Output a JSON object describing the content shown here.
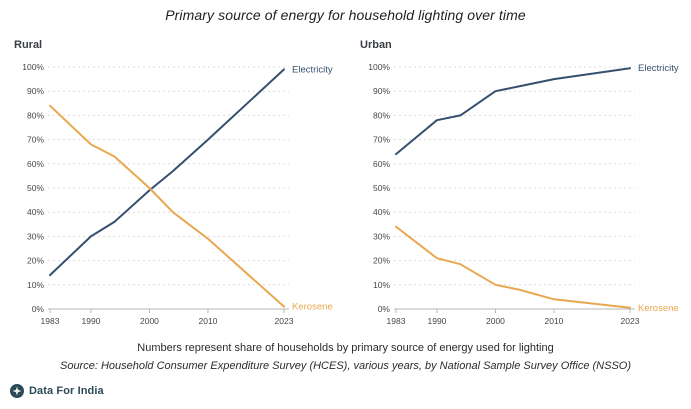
{
  "title": "Primary source of energy for household lighting over time",
  "colors": {
    "electricity": "#35506e",
    "kerosene": "#e9a84f",
    "grid": "#dcdcdc",
    "axis": "#b7b7b7",
    "tick_text": "#474747"
  },
  "chart_data": [
    {
      "type": "line",
      "title": "Rural",
      "x": [
        1983,
        1990,
        1994,
        2000,
        2004,
        2010,
        2023
      ],
      "xlim": [
        1983,
        2023
      ],
      "x_ticks": [
        1983,
        1990,
        2000,
        2010,
        2023
      ],
      "ylim": [
        0,
        100
      ],
      "y_ticks": [
        0,
        10,
        20,
        30,
        40,
        50,
        60,
        70,
        80,
        90,
        100
      ],
      "y_suffix": "%",
      "grid": true,
      "legend_position": "line-end-labels",
      "series": [
        {
          "name": "Electricity",
          "color": "#35506e",
          "values": [
            14,
            30,
            36,
            49,
            57,
            70,
            99
          ]
        },
        {
          "name": "Kerosene",
          "color": "#e9a84f",
          "values": [
            84,
            68,
            63,
            50,
            40,
            29,
            1
          ]
        }
      ]
    },
    {
      "type": "line",
      "title": "Urban",
      "x": [
        1983,
        1990,
        1994,
        2000,
        2004,
        2010,
        2023
      ],
      "xlim": [
        1983,
        2023
      ],
      "x_ticks": [
        1983,
        1990,
        2000,
        2010,
        2023
      ],
      "ylim": [
        0,
        100
      ],
      "y_ticks": [
        0,
        10,
        20,
        30,
        40,
        50,
        60,
        70,
        80,
        90,
        100
      ],
      "y_suffix": "%",
      "grid": true,
      "legend_position": "line-end-labels",
      "series": [
        {
          "name": "Electricity",
          "color": "#35506e",
          "values": [
            64,
            78,
            80,
            90,
            92,
            95,
            99.5
          ]
        },
        {
          "name": "Kerosene",
          "color": "#e9a84f",
          "values": [
            34,
            21,
            18.5,
            10,
            8,
            4,
            0.5
          ]
        }
      ]
    }
  ],
  "footer": {
    "note": "Numbers represent share of households by primary source of energy used for lighting",
    "source": "Source: Household Consumer Expenditure Survey (HCES), various years, by National Sample Survey Office (NSSO)"
  },
  "branding": {
    "name": "Data For India",
    "color": "#2b4a57"
  }
}
